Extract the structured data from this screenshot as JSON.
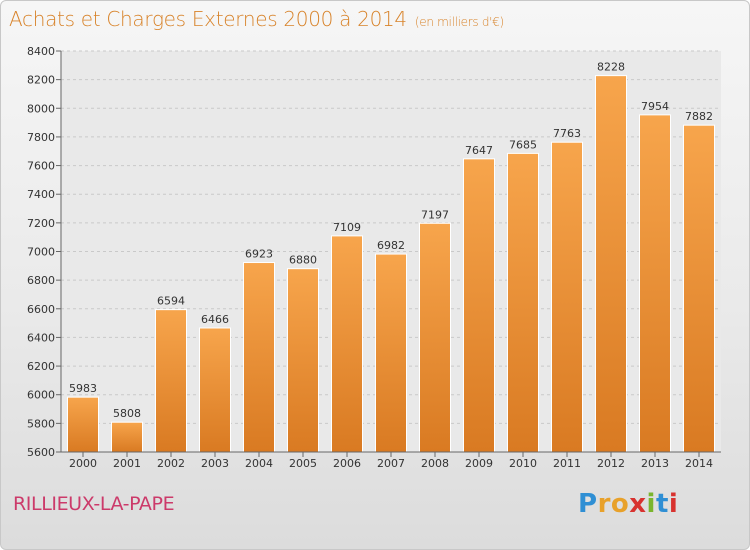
{
  "header": {
    "title": "Achats et Charges Externes 2000 à 2014",
    "unit": "(en milliers d'€)"
  },
  "footer": {
    "town": "RILLIEUX-LA-PAPE",
    "logo_text": "Proxiti"
  },
  "colors": {
    "bar_top": "#f7a54c",
    "bar_bottom": "#d97a22",
    "title": "#d8832a",
    "town": "#cc3a6a"
  },
  "chart_data": {
    "type": "bar",
    "title": "Achats et Charges Externes 2000 à 2014",
    "subtitle": "(en milliers d'€)",
    "categories": [
      "2000",
      "2001",
      "2002",
      "2003",
      "2004",
      "2005",
      "2006",
      "2007",
      "2008",
      "2009",
      "2010",
      "2011",
      "2012",
      "2013",
      "2014"
    ],
    "values": [
      5983,
      5808,
      6594,
      6466,
      6923,
      6880,
      7109,
      6982,
      7197,
      7647,
      7685,
      7763,
      8228,
      7954,
      7882
    ],
    "ylim": [
      5600,
      8400
    ],
    "yticks": [
      5600,
      5800,
      6000,
      6200,
      6400,
      6600,
      6800,
      7000,
      7200,
      7400,
      7600,
      7800,
      8000,
      8200,
      8400
    ],
    "grid": true,
    "data_labels": true
  }
}
